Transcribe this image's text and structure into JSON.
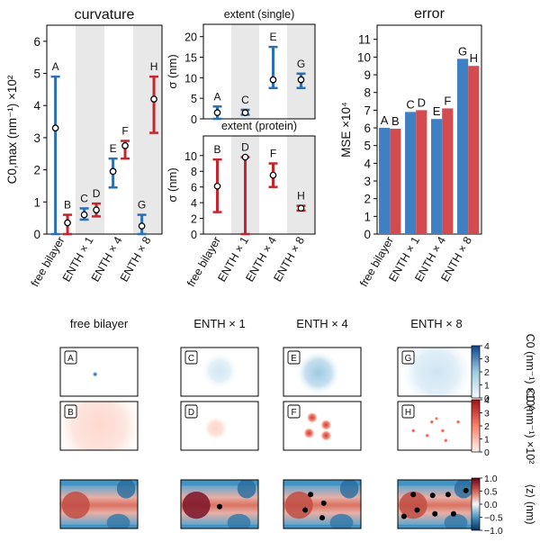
{
  "colors": {
    "blue": "#2d6fb3",
    "red": "#c3262e",
    "bar_blue": "#3f7fc4",
    "bar_red": "#d24b4f",
    "shade": "#e8e8e8",
    "black": "#000000"
  },
  "chart_data": [
    {
      "id": "curvature",
      "type": "scatter",
      "title": "curvature",
      "ylabel": "C0,max (nm⁻¹) ×10²",
      "ylim": [
        0,
        6.5
      ],
      "yticks": [
        0,
        1,
        2,
        3,
        4,
        5,
        6
      ],
      "groups": [
        "free bilayer",
        "ENTH × 1",
        "ENTH × 4",
        "ENTH × 8"
      ],
      "shaded_groups": [
        1,
        3
      ],
      "points": [
        {
          "label": "A",
          "group": 0,
          "color": "blue",
          "value": 3.3,
          "low": 0.0,
          "high": 4.9
        },
        {
          "label": "B",
          "group": 0,
          "color": "red",
          "value": 0.35,
          "low": 0.0,
          "high": 0.6
        },
        {
          "label": "C",
          "group": 1,
          "color": "blue",
          "value": 0.6,
          "low": 0.45,
          "high": 0.8
        },
        {
          "label": "D",
          "group": 1,
          "color": "red",
          "value": 0.75,
          "low": 0.55,
          "high": 0.95
        },
        {
          "label": "E",
          "group": 2,
          "color": "blue",
          "value": 1.95,
          "low": 1.45,
          "high": 2.35
        },
        {
          "label": "F",
          "group": 2,
          "color": "red",
          "value": 2.75,
          "low": 2.35,
          "high": 2.9
        },
        {
          "label": "G",
          "group": 3,
          "color": "blue",
          "value": 0.25,
          "low": 0.0,
          "high": 0.6
        },
        {
          "label": "H",
          "group": 3,
          "color": "red",
          "value": 4.2,
          "low": 3.15,
          "high": 4.9
        }
      ]
    },
    {
      "id": "extent-single",
      "type": "scatter",
      "title": "extent (single)",
      "ylabel": "σ (nm)",
      "ylim": [
        0,
        23
      ],
      "yticks": [
        0,
        5,
        10,
        15,
        20
      ],
      "shaded_groups": [
        1,
        3
      ],
      "points": [
        {
          "label": "A",
          "group": 0,
          "color": "blue",
          "value": 1.5,
          "low": 0.0,
          "high": 3.0
        },
        {
          "label": "C",
          "group": 1,
          "color": "blue",
          "value": 1.5,
          "low": 1.0,
          "high": 2.2
        },
        {
          "label": "E",
          "group": 2,
          "color": "blue",
          "value": 9.5,
          "low": 7.5,
          "high": 17.5
        },
        {
          "label": "G",
          "group": 3,
          "color": "blue",
          "value": 9.5,
          "low": 7.5,
          "high": 11.0
        }
      ]
    },
    {
      "id": "extent-protein",
      "type": "scatter",
      "title": "extent (protein)",
      "ylabel": "σ (nm)",
      "ylim": [
        0,
        12.5
      ],
      "yticks": [
        0,
        2,
        4,
        6,
        8,
        10
      ],
      "groups": [
        "free bilayer",
        "ENTH × 1",
        "ENTH × 4",
        "ENTH × 8"
      ],
      "shaded_groups": [
        1,
        3
      ],
      "points": [
        {
          "label": "B",
          "group": 0,
          "color": "red",
          "value": 6.1,
          "low": 2.8,
          "high": 9.5
        },
        {
          "label": "D",
          "group": 1,
          "color": "red",
          "value": 9.8,
          "low": 0.0,
          "high": 9.8
        },
        {
          "label": "F",
          "group": 2,
          "color": "red",
          "value": 7.5,
          "low": 6.0,
          "high": 9.0
        },
        {
          "label": "H",
          "group": 3,
          "color": "red",
          "value": 3.3,
          "low": 3.0,
          "high": 3.6
        }
      ]
    },
    {
      "id": "error",
      "type": "bar",
      "title": "error",
      "ylabel": "MSE ×10⁴",
      "ylim": [
        0,
        11.8
      ],
      "yticks": [
        0,
        1,
        2,
        3,
        4,
        5,
        6,
        7,
        8,
        9,
        10,
        11
      ],
      "categories": [
        "free bilayer",
        "ENTH × 1",
        "ENTH × 4",
        "ENTH × 8"
      ],
      "series": [
        {
          "color": "bar_blue",
          "labels": [
            "A",
            "C",
            "E",
            "G"
          ],
          "values": [
            6.0,
            6.9,
            6.5,
            9.9
          ]
        },
        {
          "color": "bar_red",
          "labels": [
            "B",
            "D",
            "F",
            "H"
          ],
          "values": [
            5.95,
            7.0,
            7.1,
            9.5
          ]
        }
      ]
    },
    {
      "id": "maps",
      "type": "heatmap",
      "columns": [
        "free bilayer",
        "ENTH × 1",
        "ENTH × 4",
        "ENTH × 8"
      ],
      "rows": [
        {
          "cmap": "blues",
          "label": "C0 (nm⁻¹) ×10²",
          "clim": [
            0,
            4
          ],
          "ticks": [
            "0",
            "1",
            "2",
            "3",
            "4"
          ],
          "panels": [
            {
              "label": "A",
              "blobs": [
                {
                  "x": 0.45,
                  "y": 0.55,
                  "r": 0.05,
                  "v": 4.0
                }
              ]
            },
            {
              "label": "C",
              "blobs": [
                {
                  "x": 0.5,
                  "y": 0.48,
                  "r": 0.3,
                  "v": 0.8
                }
              ]
            },
            {
              "label": "E",
              "blobs": [
                {
                  "x": 0.45,
                  "y": 0.52,
                  "r": 0.38,
                  "v": 2.0
                }
              ]
            },
            {
              "label": "G",
              "blobs": [
                {
                  "x": 0.5,
                  "y": 0.5,
                  "r": 0.62,
                  "v": 0.9
                }
              ]
            }
          ]
        },
        {
          "cmap": "reds",
          "label": "C0 (nm⁻¹) ×10²",
          "clim": [
            0,
            4
          ],
          "ticks": [
            "0",
            "1",
            "2",
            "3",
            "4"
          ],
          "panels": [
            {
              "label": "B",
              "blobs": [
                {
                  "x": 0.5,
                  "y": 0.5,
                  "r": 0.75,
                  "v": 0.5
                }
              ]
            },
            {
              "label": "D",
              "blobs": [
                {
                  "x": 0.45,
                  "y": 0.55,
                  "r": 0.2,
                  "v": 0.6
                }
              ]
            },
            {
              "label": "F",
              "blobs": [
                {
                  "x": 0.37,
                  "y": 0.33,
                  "r": 0.1,
                  "v": 3.2
                },
                {
                  "x": 0.55,
                  "y": 0.48,
                  "r": 0.1,
                  "v": 3.2
                },
                {
                  "x": 0.33,
                  "y": 0.65,
                  "r": 0.1,
                  "v": 3.2
                },
                {
                  "x": 0.55,
                  "y": 0.7,
                  "r": 0.1,
                  "v": 3.2
                }
              ]
            },
            {
              "label": "H",
              "blobs": [
                {
                  "x": 0.2,
                  "y": 0.6,
                  "r": 0.04,
                  "v": 3.0
                },
                {
                  "x": 0.38,
                  "y": 0.7,
                  "r": 0.04,
                  "v": 3.0
                },
                {
                  "x": 0.44,
                  "y": 0.42,
                  "r": 0.04,
                  "v": 3.0
                },
                {
                  "x": 0.58,
                  "y": 0.6,
                  "r": 0.04,
                  "v": 3.0
                },
                {
                  "x": 0.62,
                  "y": 0.8,
                  "r": 0.04,
                  "v": 3.0
                },
                {
                  "x": 0.78,
                  "y": 0.42,
                  "r": 0.04,
                  "v": 3.0
                },
                {
                  "x": 0.5,
                  "y": 0.35,
                  "r": 0.035,
                  "v": 3.0
                }
              ]
            }
          ]
        },
        {
          "cmap": "diverging",
          "label": "⟨z⟩ (nm)",
          "clim": [
            -1,
            1
          ],
          "ticks": [
            "1.0",
            "0.5",
            "0.0",
            "−0.5",
            "−1.0"
          ],
          "panels": [
            {
              "label": "",
              "dots": []
            },
            {
              "label": "",
              "dots": [
                {
                  "x": 0.5,
                  "y": 0.55
                }
              ]
            },
            {
              "label": "",
              "dots": [
                {
                  "x": 0.35,
                  "y": 0.3
                },
                {
                  "x": 0.52,
                  "y": 0.48
                },
                {
                  "x": 0.28,
                  "y": 0.62
                },
                {
                  "x": 0.5,
                  "y": 0.78
                }
              ]
            },
            {
              "label": "",
              "dots": [
                {
                  "x": 0.2,
                  "y": 0.3
                },
                {
                  "x": 0.25,
                  "y": 0.62
                },
                {
                  "x": 0.45,
                  "y": 0.32
                },
                {
                  "x": 0.65,
                  "y": 0.3
                },
                {
                  "x": 0.48,
                  "y": 0.7
                },
                {
                  "x": 0.72,
                  "y": 0.7
                },
                {
                  "x": 0.88,
                  "y": 0.22
                },
                {
                  "x": 0.08,
                  "y": 0.75
                }
              ]
            }
          ]
        }
      ]
    }
  ]
}
